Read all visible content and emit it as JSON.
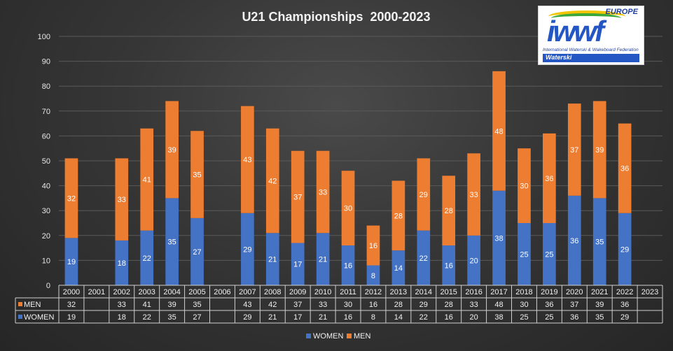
{
  "chart_data": {
    "type": "bar",
    "stacked": true,
    "title": "U21 Championships  2000-2023",
    "categories": [
      "2000",
      "2001",
      "2002",
      "2003",
      "2004",
      "2005",
      "2006",
      "2007",
      "2008",
      "2009",
      "2010",
      "2011",
      "2012",
      "2013",
      "2014",
      "2015",
      "2016",
      "2017",
      "2018",
      "2019",
      "2020",
      "2021",
      "2022",
      "2023"
    ],
    "series": [
      {
        "name": "WOMEN",
        "color": "#4472c4",
        "values": [
          19,
          null,
          18,
          22,
          35,
          27,
          null,
          29,
          21,
          17,
          21,
          16,
          8,
          14,
          22,
          16,
          20,
          38,
          25,
          25,
          36,
          35,
          29,
          null
        ]
      },
      {
        "name": "MEN",
        "color": "#ed7d31",
        "values": [
          32,
          null,
          33,
          41,
          39,
          35,
          null,
          43,
          42,
          37,
          33,
          30,
          16,
          28,
          29,
          28,
          33,
          48,
          30,
          36,
          37,
          39,
          36,
          null
        ]
      }
    ],
    "ylim": [
      0,
      100
    ],
    "yticks": [
      0,
      10,
      20,
      30,
      40,
      50,
      60,
      70,
      80,
      90,
      100
    ],
    "grid": true,
    "data_table": true,
    "legend": "bottom"
  },
  "logo": {
    "europe": "EUROPE",
    "brand": "iwwf",
    "federation": "International Waterski & Wakeboard Federation",
    "discipline": "Waterski"
  }
}
